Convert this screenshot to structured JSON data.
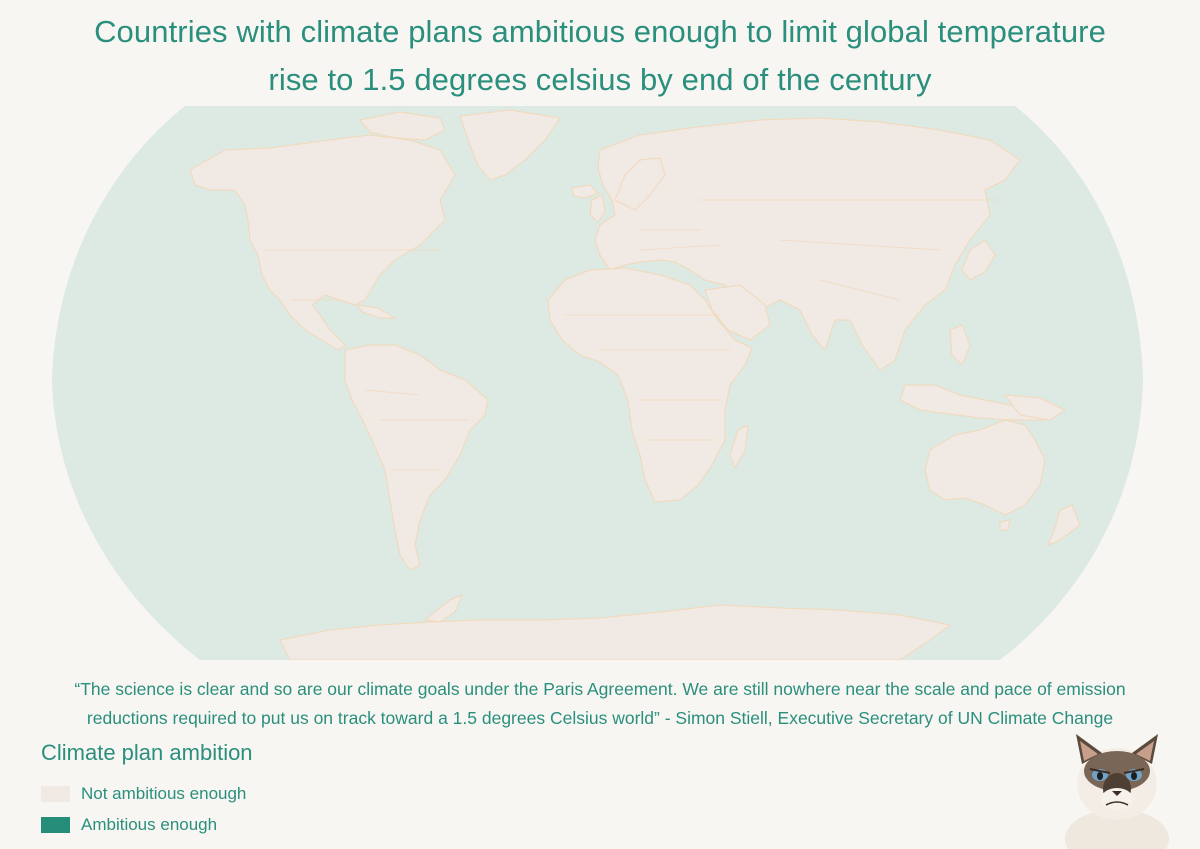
{
  "title": {
    "line1": "Countries with climate plans ambitious enough to limit global temperature",
    "line2": "rise to 1.5 degrees celsius by end of the century"
  },
  "quote": {
    "line1": "“The science is clear and so are our climate goals under the Paris Agreement. We are still nowhere near the scale and pace of emission",
    "line2": "reductions required to put us on track toward a 1.5 degrees Celsius world” - Simon Stiell, Executive Secretary of UN Climate Change"
  },
  "legend": {
    "title": "Climate plan ambition",
    "items": [
      {
        "label": "Not ambitious enough",
        "color": "#f1e9e4"
      },
      {
        "label": "Ambitious enough",
        "color": "#258d7a"
      }
    ]
  },
  "colors": {
    "ocean": "#dde9e3",
    "land": "#f1e9e4",
    "border": "#f2d8b8",
    "text": "#2a8f7d",
    "background": "#f8f6f2"
  },
  "icons": {
    "mascot": "grumpy-cat-icon"
  }
}
